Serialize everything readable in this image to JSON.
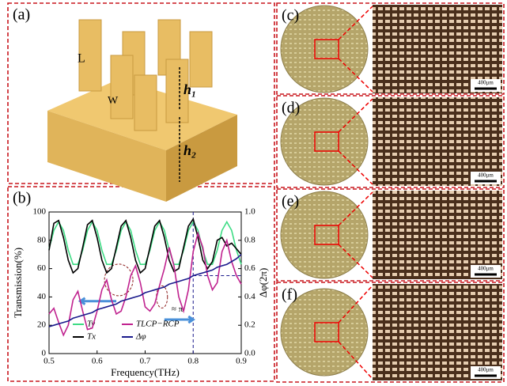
{
  "panels": {
    "a": "(a)",
    "b": "(b)",
    "c": "(c)",
    "d": "(d)",
    "e": "(e)",
    "f": "(f)"
  },
  "diagram": {
    "length": "L",
    "width": "W",
    "h1": "h₁",
    "h2": "h₂"
  },
  "scale_bar": "400μm",
  "chart_data": {
    "type": "line",
    "xlabel": "Frequency(THz)",
    "ylabel": "Transmission(%)",
    "y2label": "Δφ(2π)",
    "annotation": "≈ π",
    "x": [
      0.5,
      0.51,
      0.52,
      0.53,
      0.54,
      0.55,
      0.56,
      0.57,
      0.58,
      0.59,
      0.6,
      0.61,
      0.62,
      0.63,
      0.64,
      0.65,
      0.66,
      0.67,
      0.68,
      0.69,
      0.7,
      0.71,
      0.72,
      0.73,
      0.74,
      0.75,
      0.76,
      0.77,
      0.78,
      0.79,
      0.8,
      0.81,
      0.82,
      0.83,
      0.84,
      0.85,
      0.86,
      0.87,
      0.88,
      0.89,
      0.9
    ],
    "xlim": [
      0.5,
      0.9
    ],
    "xticks": [
      0.5,
      0.6,
      0.7,
      0.8,
      0.9
    ],
    "ylim": [
      0,
      100
    ],
    "yticks": [
      0,
      20,
      40,
      60,
      80,
      100
    ],
    "y2lim": [
      0,
      1
    ],
    "y2ticks": [
      {
        "value": 0,
        "label": "0.0"
      },
      0.2,
      0.4,
      0.6,
      0.8,
      {
        "value": 1,
        "label": "1.0"
      }
    ],
    "series": [
      {
        "name": "Ty",
        "color": "#3ddc84",
        "values": [
          74,
          87,
          93,
          87,
          73,
          63,
          63,
          73,
          87,
          93,
          87,
          73,
          63,
          63,
          73,
          87,
          93,
          87,
          73,
          63,
          63,
          73,
          87,
          93,
          87,
          73,
          63,
          63,
          73,
          87,
          93,
          87,
          73,
          63,
          63,
          73,
          87,
          93,
          87,
          73,
          63
        ]
      },
      {
        "name": "Tx",
        "color": "#000000",
        "values": [
          73,
          92,
          94,
          82,
          66,
          57,
          60,
          75,
          91,
          94,
          82,
          66,
          57,
          60,
          75,
          90,
          94,
          82,
          66,
          57,
          60,
          75,
          90,
          94,
          82,
          66,
          58,
          60,
          75,
          90,
          95,
          82,
          66,
          60,
          65,
          80,
          82,
          76,
          78,
          74,
          70
        ]
      },
      {
        "name": "TLCP−RCP",
        "color": "#c0228f",
        "values": [
          28,
          32,
          22,
          13,
          20,
          38,
          44,
          30,
          17,
          18,
          30,
          45,
          52,
          38,
          28,
          30,
          40,
          55,
          62,
          50,
          33,
          30,
          35,
          48,
          60,
          75,
          62,
          40,
          30,
          45,
          72,
          85,
          75,
          55,
          45,
          50,
          72,
          80,
          65,
          55,
          49
        ]
      },
      {
        "name": "Δφ",
        "color": "#1a1a8c",
        "axis": "y2",
        "values": [
          0.19,
          0.2,
          0.21,
          0.22,
          0.23,
          0.25,
          0.26,
          0.27,
          0.28,
          0.29,
          0.31,
          0.32,
          0.33,
          0.34,
          0.35,
          0.37,
          0.38,
          0.39,
          0.4,
          0.41,
          0.43,
          0.44,
          0.45,
          0.46,
          0.47,
          0.49,
          0.5,
          0.51,
          0.52,
          0.53,
          0.55,
          0.56,
          0.57,
          0.58,
          0.59,
          0.61,
          0.62,
          0.63,
          0.65,
          0.67,
          0.7
        ]
      }
    ]
  }
}
